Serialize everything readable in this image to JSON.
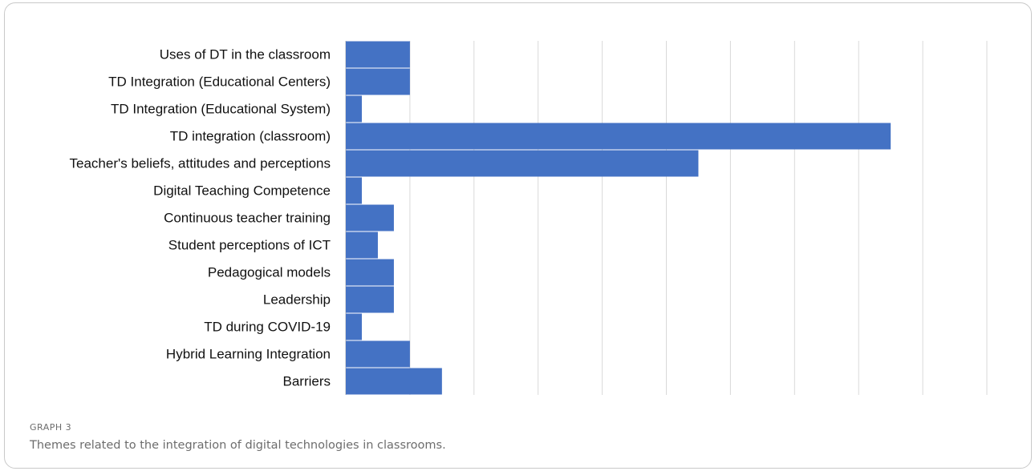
{
  "caption": {
    "tag": "GRAPH 3",
    "text": "Themes related to the integration of digital technologies in classrooms."
  },
  "colors": {
    "bar": "#4472c4",
    "grid": "#d9d9d9"
  },
  "chart_data": {
    "type": "bar",
    "orientation": "horizontal",
    "categories": [
      "Uses of DT in the classroom",
      "TD Integration (Educational Centers)",
      "TD Integration (Educational System)",
      "TD integration (classroom)",
      "Teacher's beliefs, attitudes and perceptions",
      "Digital Teaching Competence",
      "Continuous teacher training",
      "Student perceptions of ICT",
      "Pedagogical models",
      "Leadership",
      "TD during COVID-19",
      "Hybrid Learning Integration",
      "Barriers"
    ],
    "values": [
      4,
      4,
      1,
      34,
      22,
      1,
      3,
      2,
      3,
      3,
      1,
      4,
      6
    ],
    "xlim": [
      0,
      40
    ],
    "grid": true,
    "xticks_visible": false
  }
}
